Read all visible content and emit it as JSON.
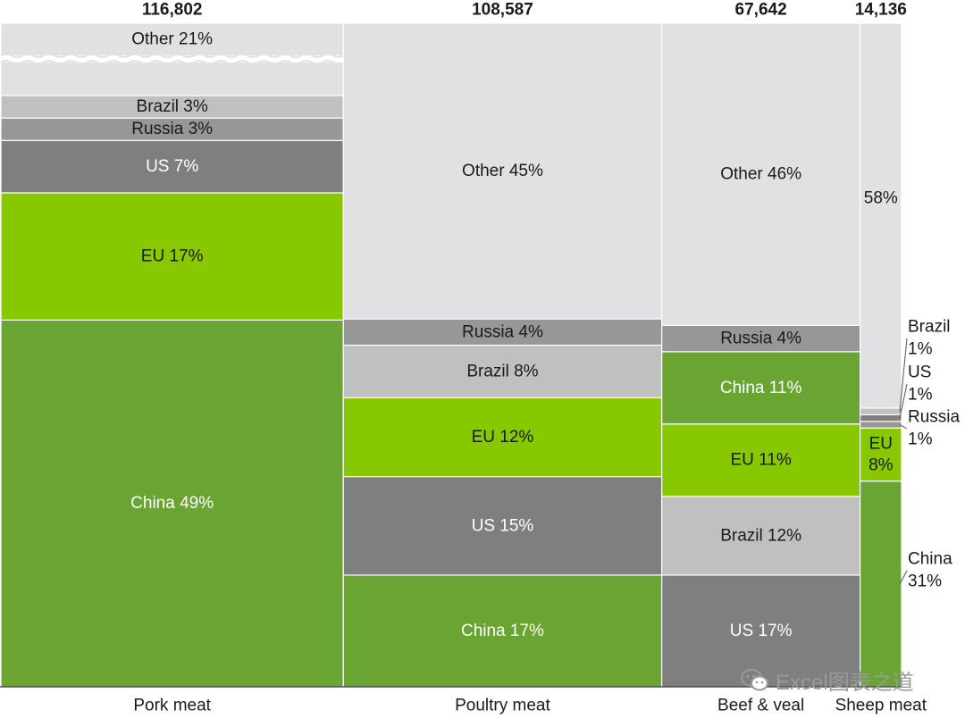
{
  "chart_data": {
    "type": "marimekko",
    "title": "",
    "unit_totals_label": "",
    "categories": [
      {
        "name": "Pork meat",
        "total": 116802,
        "total_label": "116,802",
        "broken_top": true,
        "segments": [
          {
            "name": "China",
            "pct": 49,
            "label": "China 49%"
          },
          {
            "name": "EU",
            "pct": 17,
            "label": "EU 17%"
          },
          {
            "name": "US",
            "pct": 7,
            "label": "US 7%"
          },
          {
            "name": "Russia",
            "pct": 3,
            "label": "Russia 3%"
          },
          {
            "name": "Brazil",
            "pct": 3,
            "label": "Brazil 3%"
          },
          {
            "name": "Other",
            "pct": 21,
            "label": "Other 21%"
          }
        ]
      },
      {
        "name": "Poultry meat",
        "total": 108587,
        "total_label": "108,587",
        "segments": [
          {
            "name": "China",
            "pct": 17,
            "label": "China 17%"
          },
          {
            "name": "US",
            "pct": 15,
            "label": "US 15%"
          },
          {
            "name": "EU",
            "pct": 12,
            "label": "EU 12%"
          },
          {
            "name": "Brazil",
            "pct": 8,
            "label": "Brazil 8%"
          },
          {
            "name": "Russia",
            "pct": 4,
            "label": "Russia 4%"
          },
          {
            "name": "Other",
            "pct": 45,
            "label": "Other 45%"
          }
        ]
      },
      {
        "name": "Beef & veal",
        "total": 67642,
        "total_label": "67,642",
        "segments": [
          {
            "name": "US",
            "pct": 17,
            "label": "US 17%"
          },
          {
            "name": "Brazil",
            "pct": 12,
            "label": "Brazil 12%"
          },
          {
            "name": "EU",
            "pct": 11,
            "label": "EU 11%"
          },
          {
            "name": "China",
            "pct": 11,
            "label": "China 11%"
          },
          {
            "name": "Russia",
            "pct": 4,
            "label": "Russia 4%"
          },
          {
            "name": "Other",
            "pct": 46,
            "label": "Other 46%"
          }
        ]
      },
      {
        "name": "Sheep meat",
        "total": 14136,
        "total_label": "14,136",
        "segments": [
          {
            "name": "China",
            "pct": 31,
            "label": "China 31%",
            "outside": [
              "China",
              "31%"
            ]
          },
          {
            "name": "EU",
            "pct": 8,
            "label": "EU 8%",
            "inside": [
              "EU",
              "8%"
            ]
          },
          {
            "name": "Russia",
            "pct": 1,
            "label": "Russia 1%",
            "outside": [
              "Russia",
              "1%"
            ]
          },
          {
            "name": "US",
            "pct": 1,
            "label": "US 1%",
            "outside": [
              "US",
              "1%"
            ]
          },
          {
            "name": "Brazil",
            "pct": 1,
            "label": "Brazil 1%",
            "outside": [
              "Brazil",
              "1%"
            ]
          },
          {
            "name": "Other",
            "pct": 58,
            "label": "58%"
          }
        ]
      }
    ],
    "colors": {
      "China": "#6aa534",
      "EU": "#88c800",
      "US": "#7f7f7f",
      "Brazil": "#c0c0c0",
      "Russia": "#979797",
      "Other": "#e1e1e3"
    },
    "label_colors": {
      "China": "#ffffff",
      "EU": "#1a1a1a",
      "US": "#ffffff",
      "Brazil": "#1a1a1a",
      "Russia": "#1a1a1a",
      "Other": "#1a1a1a"
    }
  },
  "watermark": {
    "text": "Excel图表之道",
    "icon": "wechat-icon"
  }
}
